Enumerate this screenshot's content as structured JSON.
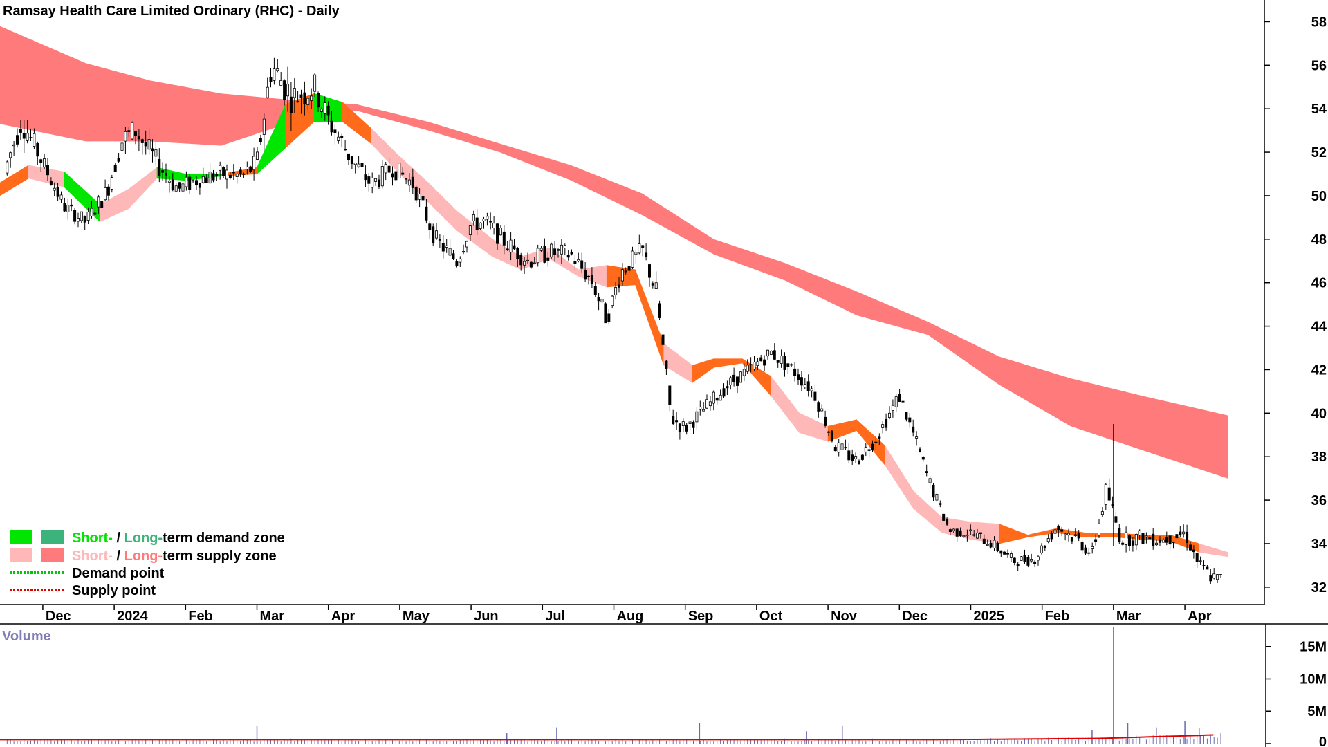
{
  "chart_data": {
    "type": "candlestick",
    "title": "Ramsay Health Care Limited Ordinary (RHC) - Daily",
    "price_axis": {
      "ticks": [
        32,
        34,
        36,
        38,
        40,
        42,
        44,
        46,
        48,
        50,
        52,
        54,
        56,
        58
      ],
      "range": [
        31.2,
        59.0
      ]
    },
    "x_labels": [
      "Dec",
      "2024",
      "Feb",
      "Mar",
      "Apr",
      "May",
      "Jun",
      "Jul",
      "Aug",
      "Sep",
      "Oct",
      "Nov",
      "Dec",
      "2025",
      "Feb",
      "Mar",
      "Apr"
    ],
    "x_range_months": [
      -0.6,
      16.6
    ],
    "month_starts": [
      0,
      1,
      2,
      3,
      4,
      5,
      6,
      7,
      8,
      9,
      10,
      11,
      12,
      13,
      14,
      15,
      16
    ],
    "volume_panel": {
      "title": "Volume",
      "ticks": [
        "15M",
        "10M",
        "5M",
        "0"
      ],
      "tick_values": [
        15,
        10,
        5,
        0
      ],
      "unit": "M",
      "range": [
        0,
        18.5
      ]
    },
    "legend": {
      "position": "bottom-left",
      "demand_short": "Short-",
      "demand_sep": " / ",
      "demand_long": "Long-",
      "demand_rest": "term demand zone",
      "supply_short": "Short-",
      "supply_sep": " / ",
      "supply_long": "Long-",
      "supply_rest": "term supply zone",
      "demand_point": "Demand point",
      "supply_point": "Supply point"
    },
    "long_term_zone": {
      "color": "#ff7b7b",
      "x": [
        -0.6,
        0.6,
        1.5,
        2.5,
        3.5,
        4.4,
        5.4,
        6.4,
        7.4,
        8.4,
        9.4,
        10.4,
        11.4,
        12.4,
        13.4,
        14.4,
        15.4,
        16.6
      ],
      "upper": [
        57.8,
        56.1,
        55.3,
        54.7,
        54.4,
        54.2,
        53.4,
        52.4,
        51.4,
        50.1,
        48.0,
        46.9,
        45.6,
        44.2,
        42.6,
        41.6,
        40.8,
        39.9
      ],
      "lower": [
        53.3,
        52.5,
        52.5,
        52.3,
        53.4,
        53.9,
        53.0,
        52.0,
        50.7,
        49.1,
        47.3,
        46.1,
        44.5,
        43.6,
        41.3,
        39.4,
        38.3,
        37.0
      ]
    },
    "short_term_zone": {
      "supply_color": "#ffb8b8",
      "demand_color": "#00e600",
      "mixed_color": "#ff6b1a",
      "x": [
        -0.6,
        -0.2,
        0.3,
        0.8,
        1.2,
        1.6,
        2.0,
        2.5,
        3.0,
        3.4,
        3.8,
        4.2,
        4.6,
        5.0,
        5.4,
        5.8,
        6.3,
        6.7,
        7.1,
        7.5,
        7.9,
        8.3,
        8.7,
        9.1,
        9.4,
        9.8,
        10.2,
        10.6,
        11.0,
        11.4,
        11.8,
        12.2,
        12.6,
        13.0,
        13.4,
        13.8,
        14.2,
        14.6,
        15.0,
        15.4,
        15.8,
        16.2,
        16.6
      ],
      "upper": [
        50.6,
        51.4,
        51.1,
        49.6,
        50.3,
        51.3,
        51.0,
        51.0,
        51.3,
        54.2,
        54.7,
        54.3,
        53.1,
        51.8,
        50.6,
        49.3,
        48.0,
        47.2,
        47.6,
        46.6,
        46.8,
        46.6,
        43.2,
        42.2,
        42.5,
        42.5,
        41.7,
        40.0,
        39.4,
        39.7,
        38.5,
        36.4,
        35.2,
        35.0,
        34.9,
        34.4,
        34.7,
        34.5,
        34.5,
        34.4,
        34.4,
        34.0,
        33.6
      ],
      "lower": [
        50.0,
        50.8,
        50.4,
        48.8,
        49.4,
        50.8,
        50.7,
        50.9,
        51.0,
        52.2,
        53.4,
        53.4,
        52.4,
        51.0,
        49.7,
        48.4,
        47.2,
        46.6,
        47.1,
        46.3,
        45.8,
        45.9,
        42.2,
        41.4,
        42.1,
        42.3,
        40.8,
        39.1,
        38.7,
        39.2,
        37.6,
        35.6,
        34.5,
        34.2,
        34.0,
        34.3,
        34.5,
        34.3,
        34.3,
        34.2,
        34.1,
        33.6,
        33.4
      ],
      "state": [
        "mixed",
        "supply",
        "demand",
        "supply",
        "supply",
        "demand",
        "demand",
        "mixed",
        "demand",
        "mixed",
        "demand",
        "mixed",
        "supply",
        "supply",
        "supply",
        "supply",
        "supply",
        "supply",
        "supply",
        "supply",
        "mixed",
        "mixed",
        "supply",
        "mixed",
        "mixed",
        "mixed",
        "supply",
        "supply",
        "mixed",
        "mixed",
        "supply",
        "supply",
        "supply",
        "supply",
        "mixed",
        "mixed",
        "mixed",
        "mixed",
        "mixed",
        "mixed",
        "mixed",
        "supply",
        "supply"
      ]
    },
    "price_path": {
      "x": [
        -0.6,
        -0.3,
        0.0,
        0.3,
        0.6,
        0.9,
        1.1,
        1.3,
        1.6,
        1.9,
        2.2,
        2.5,
        2.8,
        3.0,
        3.2,
        3.5,
        3.8,
        4.0,
        4.3,
        4.6,
        4.9,
        5.2,
        5.5,
        5.8,
        6.0,
        6.2,
        6.5,
        6.8,
        7.1,
        7.4,
        7.7,
        7.9,
        8.1,
        8.4,
        8.6,
        8.8,
        9.0,
        9.3,
        9.6,
        9.9,
        10.2,
        10.5,
        10.8,
        11.1,
        11.4,
        11.7,
        12.0,
        12.2,
        12.4,
        12.7,
        13.0,
        13.3,
        13.6,
        13.9,
        14.2,
        14.5,
        14.7,
        14.9,
        15.1,
        15.4,
        15.7,
        16.0,
        16.2,
        16.4,
        16.6
      ],
      "y": [
        50.5,
        53.5,
        51.5,
        49.5,
        48.8,
        50.2,
        52.5,
        53.0,
        51.5,
        50.3,
        50.8,
        51.0,
        50.9,
        51.5,
        56.0,
        54.5,
        55.0,
        53.5,
        51.8,
        50.5,
        51.3,
        50.5,
        48.0,
        47.0,
        48.7,
        48.8,
        47.8,
        47.0,
        47.4,
        47.3,
        46.0,
        44.3,
        46.5,
        47.5,
        45.5,
        39.8,
        39.3,
        40.3,
        41.3,
        42.0,
        42.8,
        42.0,
        41.0,
        38.5,
        37.8,
        39.0,
        40.8,
        39.0,
        37.0,
        34.6,
        34.5,
        34.0,
        33.2,
        33.3,
        34.8,
        34.2,
        33.5,
        36.5,
        34.2,
        34.3,
        34.2,
        34.5,
        33.0,
        32.4,
        32.3
      ],
      "amplitude": [
        0.4,
        0.8,
        0.5,
        0.4,
        0.4,
        0.5,
        0.7,
        0.7,
        0.6,
        0.5,
        0.5,
        0.5,
        0.5,
        0.6,
        1.0,
        0.9,
        0.8,
        0.7,
        0.6,
        0.5,
        0.5,
        0.5,
        0.5,
        0.5,
        0.5,
        0.5,
        0.5,
        0.5,
        0.5,
        0.5,
        0.5,
        0.5,
        0.5,
        0.5,
        0.6,
        0.5,
        0.4,
        0.4,
        0.4,
        0.4,
        0.4,
        0.4,
        0.4,
        0.4,
        0.4,
        0.4,
        0.4,
        0.4,
        0.4,
        0.3,
        0.3,
        0.3,
        0.3,
        0.3,
        0.4,
        0.4,
        0.4,
        0.5,
        0.4,
        0.4,
        0.4,
        0.4,
        0.4,
        0.4,
        0.4
      ]
    },
    "volume_baseline": {
      "x": [
        -0.6,
        12.6,
        14.8,
        16.6
      ],
      "values": [
        0.6,
        0.6,
        0.8,
        1.4
      ],
      "color": "#e00000"
    },
    "volume_spikes": [
      {
        "x": 3.0,
        "v": 2.7
      },
      {
        "x": 7.2,
        "v": 2.5
      },
      {
        "x": 9.2,
        "v": 3.1
      },
      {
        "x": 10.7,
        "v": 1.9
      },
      {
        "x": 11.2,
        "v": 2.8
      },
      {
        "x": 15.0,
        "v": 18.0
      },
      {
        "x": 15.2,
        "v": 3.2
      },
      {
        "x": 15.6,
        "v": 2.5
      },
      {
        "x": 16.0,
        "v": 3.5
      },
      {
        "x": 16.2,
        "v": 2.4
      },
      {
        "x": 14.7,
        "v": 2.1
      },
      {
        "x": 6.5,
        "v": 1.6
      }
    ]
  }
}
